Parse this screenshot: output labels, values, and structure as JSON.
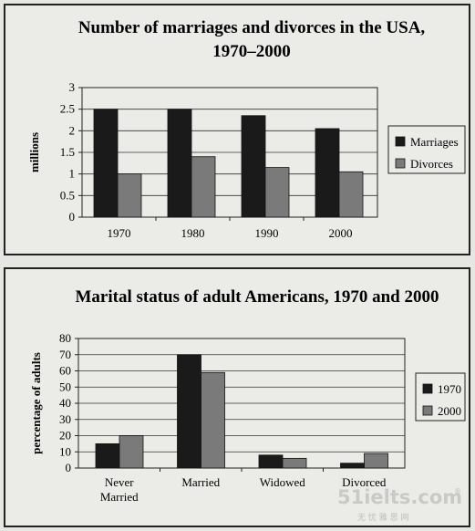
{
  "chart_data": [
    {
      "type": "bar",
      "title": "Number of marriages and divorces in the USA,",
      "subtitle": "1970–2000",
      "ylabel": "millions",
      "xlabel": "",
      "ylim": [
        0,
        3
      ],
      "yticks": [
        "0",
        "0.5",
        "1",
        "1.5",
        "2",
        "2.5",
        "3"
      ],
      "categories": [
        "1970",
        "1980",
        "1990",
        "2000"
      ],
      "series": [
        {
          "name": "Marriages",
          "values": [
            2.5,
            2.5,
            2.35,
            2.05
          ],
          "color": "#1a1a1a"
        },
        {
          "name": "Divorces",
          "values": [
            1.0,
            1.4,
            1.15,
            1.05
          ],
          "color": "#7a7a7a"
        }
      ],
      "grid": true,
      "legend_position": "right"
    },
    {
      "type": "bar",
      "title": "Marital status of adult Americans, 1970 and 2000",
      "ylabel": "percentage of adults",
      "xlabel": "",
      "ylim": [
        0,
        80
      ],
      "yticks": [
        "0",
        "10",
        "20",
        "30",
        "40",
        "50",
        "60",
        "70",
        "80"
      ],
      "categories": [
        [
          "Never",
          "Married"
        ],
        [
          "Married"
        ],
        [
          "Widowed"
        ],
        [
          "Divorced"
        ]
      ],
      "series": [
        {
          "name": "1970",
          "values": [
            15,
            70,
            8,
            3
          ],
          "color": "#1a1a1a"
        },
        {
          "name": "2000",
          "values": [
            20,
            59,
            6,
            9
          ],
          "color": "#7a7a7a"
        }
      ],
      "grid": true,
      "legend_position": "right"
    }
  ],
  "watermark": {
    "main": "51ielts.com",
    "sub": "无 忧 雅 思 网",
    "mark": "®"
  }
}
